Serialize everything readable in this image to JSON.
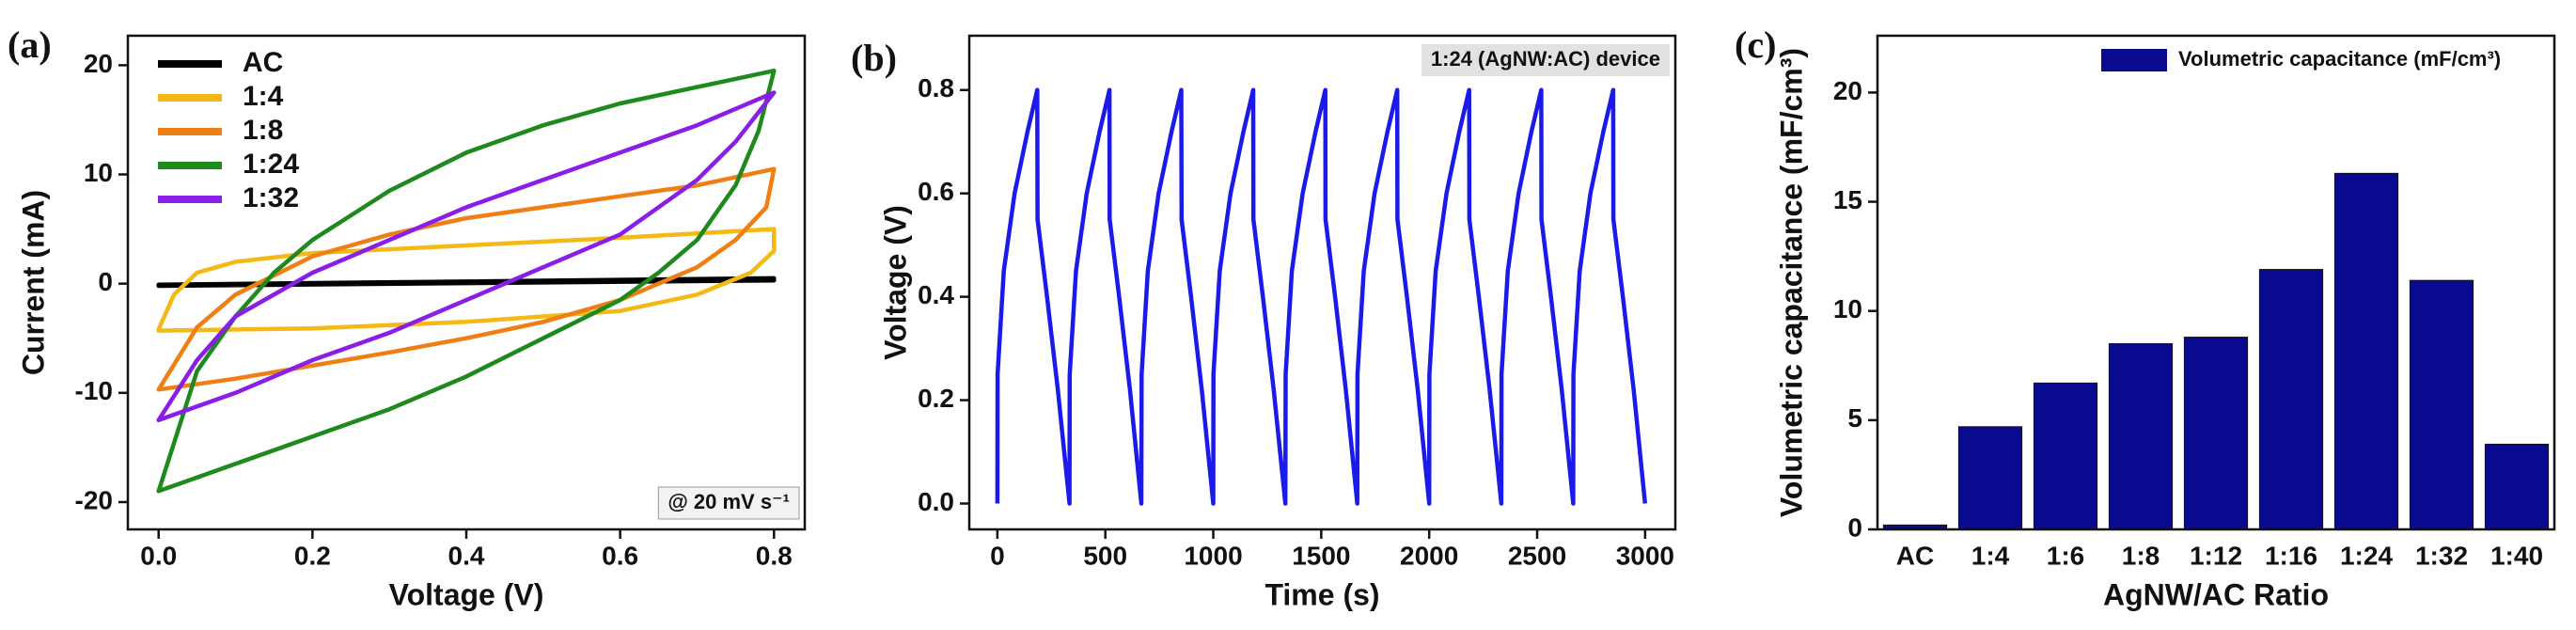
{
  "chart_data": [
    {
      "type": "line",
      "panel_label": "(a)",
      "x_label": "Voltage (V)",
      "y_label": "Current (mA)",
      "xlim": [
        -0.04,
        0.84
      ],
      "ylim": [
        -22.5,
        22.7
      ],
      "xticks": [
        {
          "value": 0,
          "label": "0.0"
        },
        0.2,
        0.4,
        0.6,
        0.8
      ],
      "yticks": [
        -20,
        -10,
        0,
        10,
        20
      ],
      "legend": "upper left",
      "annotation": "@ 20 mV s⁻¹",
      "annotation_corner": "lower right",
      "series": [
        {
          "name": "AC",
          "color": "#000000",
          "x": [
            0,
            0.8,
            0.8,
            0
          ],
          "values": [
            -0.2,
            0.3,
            0.5,
            -0.1
          ]
        },
        {
          "name": "1:4",
          "color": "#f5b915",
          "x": [
            0,
            0.02,
            0.05,
            0.1,
            0.2,
            0.4,
            0.6,
            0.75,
            0.8,
            0.8,
            0.77,
            0.7,
            0.6,
            0.4,
            0.2,
            0
          ],
          "values": [
            -4.2,
            -1,
            1,
            2,
            2.8,
            3.5,
            4.2,
            4.8,
            5,
            3,
            1,
            -1,
            -2.5,
            -3.5,
            -4.1,
            -4.3
          ]
        },
        {
          "name": "1:8",
          "color": "#f07f13",
          "x": [
            0,
            0.05,
            0.1,
            0.2,
            0.3,
            0.4,
            0.5,
            0.6,
            0.7,
            0.8,
            0.79,
            0.75,
            0.7,
            0.6,
            0.5,
            0.4,
            0.3,
            0.2,
            0.1,
            0
          ],
          "values": [
            -9.7,
            -4,
            -1,
            2.5,
            4.5,
            6,
            7,
            8,
            9,
            10.5,
            7,
            4,
            1.5,
            -1.5,
            -3.5,
            -5,
            -6.3,
            -7.5,
            -8.7,
            -9.7
          ]
        },
        {
          "name": "1:24",
          "color": "#1e8a1e",
          "x": [
            0,
            0.05,
            0.1,
            0.15,
            0.2,
            0.3,
            0.4,
            0.5,
            0.6,
            0.7,
            0.8,
            0.78,
            0.75,
            0.7,
            0.65,
            0.6,
            0.5,
            0.4,
            0.3,
            0.2,
            0.1,
            0
          ],
          "values": [
            -19,
            -8,
            -3,
            1,
            4,
            8.5,
            12,
            14.5,
            16.5,
            18,
            19.5,
            14,
            9,
            4,
            1,
            -1.5,
            -5,
            -8.5,
            -11.5,
            -14,
            -16.5,
            -19
          ]
        },
        {
          "name": "1:32",
          "color": "#8a1ee6",
          "x": [
            0,
            0.05,
            0.1,
            0.2,
            0.3,
            0.4,
            0.5,
            0.6,
            0.7,
            0.8,
            0.75,
            0.7,
            0.6,
            0.5,
            0.4,
            0.3,
            0.2,
            0.1,
            0
          ],
          "values": [
            -12.5,
            -7,
            -3,
            1,
            4,
            7,
            9.5,
            12,
            14.5,
            17.5,
            13,
            9.5,
            4.5,
            1.5,
            -1.5,
            -4.5,
            -7,
            -10,
            -12.5
          ]
        }
      ]
    },
    {
      "type": "line",
      "panel_label": "(b)",
      "x_label": "Time (s)",
      "y_label": "Voltage (V)",
      "xlim": [
        -130,
        3140
      ],
      "ylim": [
        -0.05,
        0.905
      ],
      "xticks": [
        0,
        500,
        1000,
        1500,
        2000,
        2500,
        3000
      ],
      "yticks": [
        {
          "value": 0,
          "label": "0.0"
        },
        0.2,
        0.4,
        0.6,
        0.8
      ],
      "annotation": "1:24 (AgNW:AC) device",
      "annotation_corner": "upper right",
      "series": [
        {
          "color": "#1a1aeb",
          "x": [
            0,
            1,
            30,
            80,
            140,
            185,
            186,
            230,
            280,
            334,
            335,
            364,
            414,
            474,
            519,
            520,
            564,
            614,
            667,
            668,
            697,
            747,
            807,
            852,
            853,
            897,
            947,
            1000,
            1001,
            1030,
            1080,
            1140,
            1185,
            1186,
            1230,
            1280,
            1334,
            1335,
            1364,
            1414,
            1474,
            1519,
            1520,
            1564,
            1614,
            1667,
            1668,
            1697,
            1747,
            1807,
            1852,
            1853,
            1897,
            1947,
            2000,
            2001,
            2030,
            2080,
            2140,
            2185,
            2186,
            2230,
            2280,
            2334,
            2335,
            2364,
            2414,
            2474,
            2519,
            2520,
            2564,
            2614,
            2667,
            2668,
            2697,
            2747,
            2807,
            2852,
            2853,
            2897,
            2947,
            3000
          ],
          "values": [
            0,
            0.25,
            0.45,
            0.6,
            0.72,
            0.8,
            0.55,
            0.4,
            0.22,
            0,
            0.25,
            0.45,
            0.6,
            0.72,
            0.8,
            0.55,
            0.4,
            0.22,
            0,
            0.25,
            0.45,
            0.6,
            0.72,
            0.8,
            0.55,
            0.4,
            0.22,
            0,
            0.25,
            0.45,
            0.6,
            0.72,
            0.8,
            0.55,
            0.4,
            0.22,
            0,
            0.25,
            0.45,
            0.6,
            0.72,
            0.8,
            0.55,
            0.4,
            0.22,
            0,
            0.25,
            0.45,
            0.6,
            0.72,
            0.8,
            0.55,
            0.4,
            0.22,
            0,
            0.25,
            0.45,
            0.6,
            0.72,
            0.8,
            0.55,
            0.4,
            0.22,
            0,
            0.25,
            0.45,
            0.6,
            0.72,
            0.8,
            0.55,
            0.4,
            0.22,
            0,
            0.25,
            0.45,
            0.6,
            0.72,
            0.8,
            0.55,
            0.4,
            0.22,
            0
          ]
        }
      ]
    },
    {
      "type": "bar",
      "panel_label": "(c)",
      "x_label": "AgNW/AC Ratio",
      "y_label": "Volumetric capacitance (mF/cm³)",
      "categories": [
        "AC",
        "1:4",
        "1:6",
        "1:8",
        "1:12",
        "1:16",
        "1:24",
        "1:32",
        "1:40"
      ],
      "series": [
        {
          "name": "Volumetric capacitance (mF/cm³)",
          "color": "#0a0a91",
          "values": [
            0.2,
            4.7,
            6.7,
            8.5,
            8.8,
            11.9,
            16.3,
            11.4,
            3.9
          ]
        }
      ],
      "ylim": [
        0,
        22.6
      ],
      "yticks": [
        0,
        5,
        10,
        15,
        20
      ],
      "legend": "upper right"
    }
  ]
}
